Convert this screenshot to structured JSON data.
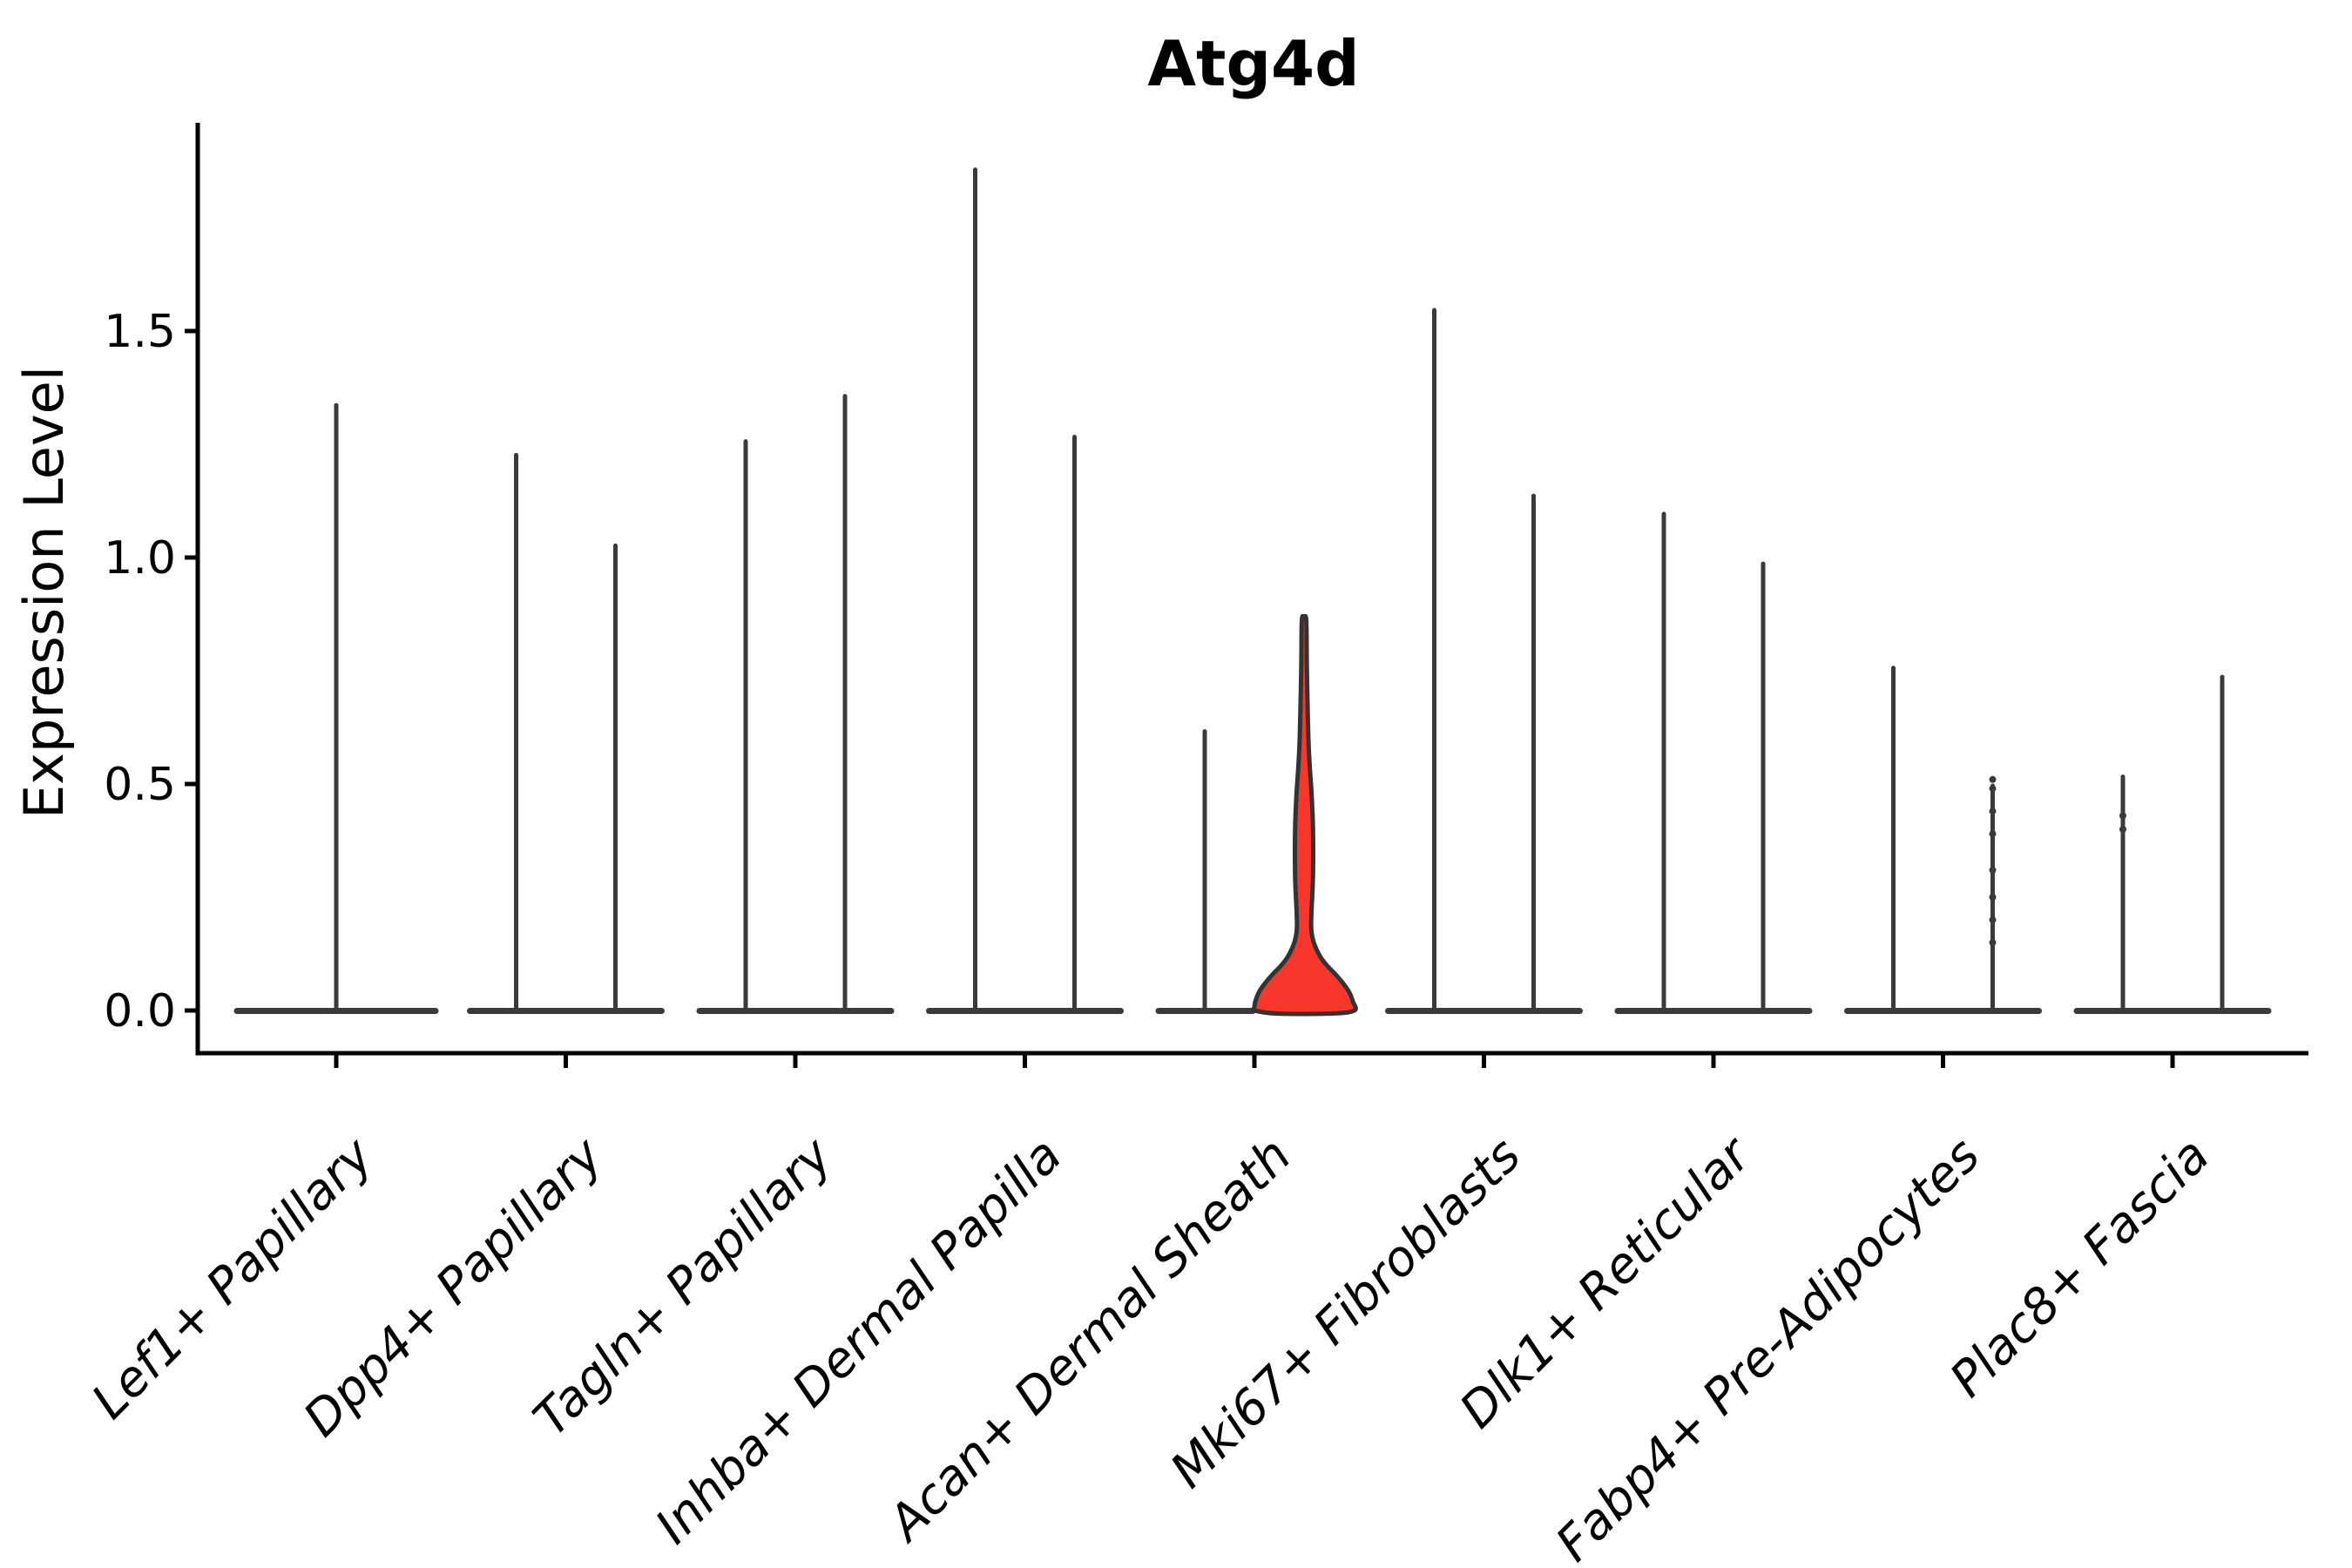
{
  "figure": {
    "title": "Atg4d",
    "background": "#ffffff"
  },
  "chart_data": {
    "type": "violin",
    "title": "Atg4d",
    "xlabel": "",
    "ylabel": "Expression Level",
    "ylim": [
      0,
      1.96
    ],
    "yticks": [
      "0.0",
      "0.5",
      "1.0",
      "1.5"
    ],
    "ytick_values": [
      0.0,
      0.5,
      1.0,
      1.5
    ],
    "grid": false,
    "legend_position": "none",
    "categories": [
      "Lef1+ Papillary",
      "Dpp4+ Papillary",
      "Tagln+ Papillary",
      "Inhba+ Dermal Papilla",
      "Acan+ Dermal Sheath",
      "Mki67+ Fibroblasts",
      "Dlk1+ Reticular",
      "Fabp4+ Pre-Adipocytes",
      "Plac8+ Fascia"
    ],
    "violins": [
      {
        "category": "Lef1+ Papillary",
        "cat_index": 0,
        "position": "center",
        "max_expression": 1.34,
        "shape": "spike"
      },
      {
        "category": "Dpp4+ Papillary",
        "cat_index": 1,
        "position": "left",
        "max_expression": 1.23,
        "shape": "spike"
      },
      {
        "category": "Dpp4+ Papillary",
        "cat_index": 1,
        "position": "right",
        "max_expression": 1.03,
        "shape": "spike"
      },
      {
        "category": "Tagln+ Papillary",
        "cat_index": 2,
        "position": "left",
        "max_expression": 1.26,
        "shape": "spike"
      },
      {
        "category": "Tagln+ Papillary",
        "cat_index": 2,
        "position": "right",
        "max_expression": 1.36,
        "shape": "spike"
      },
      {
        "category": "Inhba+ Dermal Papilla",
        "cat_index": 3,
        "position": "left",
        "max_expression": 1.86,
        "shape": "spike"
      },
      {
        "category": "Inhba+ Dermal Papilla",
        "cat_index": 3,
        "position": "right",
        "max_expression": 1.27,
        "shape": "spike"
      },
      {
        "category": "Acan+ Dermal Sheath",
        "cat_index": 4,
        "position": "left",
        "max_expression": 0.62,
        "shape": "spike"
      },
      {
        "category": "Acan+ Dermal Sheath",
        "cat_index": 4,
        "position": "right",
        "max_expression": 0.86,
        "shape": "violin",
        "highlighted": true,
        "profile": [
          [
            0.0,
            0.98
          ],
          [
            0.02,
            0.95
          ],
          [
            0.04,
            0.88
          ],
          [
            0.06,
            0.76
          ],
          [
            0.08,
            0.61
          ],
          [
            0.1,
            0.44
          ],
          [
            0.12,
            0.31
          ],
          [
            0.15,
            0.19
          ],
          [
            0.18,
            0.14
          ],
          [
            0.22,
            0.145
          ],
          [
            0.28,
            0.17
          ],
          [
            0.35,
            0.178
          ],
          [
            0.42,
            0.17
          ],
          [
            0.48,
            0.145
          ],
          [
            0.54,
            0.11
          ],
          [
            0.6,
            0.085
          ],
          [
            0.68,
            0.068
          ],
          [
            0.76,
            0.054
          ],
          [
            0.86,
            0.044
          ]
        ]
      },
      {
        "category": "Mki67+ Fibroblasts",
        "cat_index": 5,
        "position": "left",
        "max_expression": 1.55,
        "shape": "spike"
      },
      {
        "category": "Mki67+ Fibroblasts",
        "cat_index": 5,
        "position": "right",
        "max_expression": 1.14,
        "shape": "spike"
      },
      {
        "category": "Dlk1+ Reticular",
        "cat_index": 6,
        "position": "left",
        "max_expression": 1.1,
        "shape": "spike"
      },
      {
        "category": "Dlk1+ Reticular",
        "cat_index": 6,
        "position": "right",
        "max_expression": 0.99,
        "shape": "spike"
      },
      {
        "category": "Fabp4+ Pre-Adipocytes",
        "cat_index": 7,
        "position": "left",
        "max_expression": 0.76,
        "shape": "spike"
      },
      {
        "category": "Fabp4+ Pre-Adipocytes",
        "cat_index": 7,
        "position": "right",
        "max_expression": 0.5,
        "shape": "spike",
        "points": [
          0.51,
          0.49,
          0.44,
          0.39,
          0.31,
          0.25,
          0.2,
          0.15
        ]
      },
      {
        "category": "Plac8+ Fascia",
        "cat_index": 8,
        "position": "left",
        "max_expression": 0.52,
        "shape": "spike",
        "points": [
          0.43,
          0.4
        ]
      },
      {
        "category": "Plac8+ Fascia",
        "cat_index": 8,
        "position": "right",
        "max_expression": 0.74,
        "shape": "spike"
      }
    ],
    "colors": {
      "ink": "#000000",
      "violin_stroke": "#3a3a3a",
      "highlight_fill": "#f8372c",
      "highlight_stroke": "#333333"
    }
  }
}
